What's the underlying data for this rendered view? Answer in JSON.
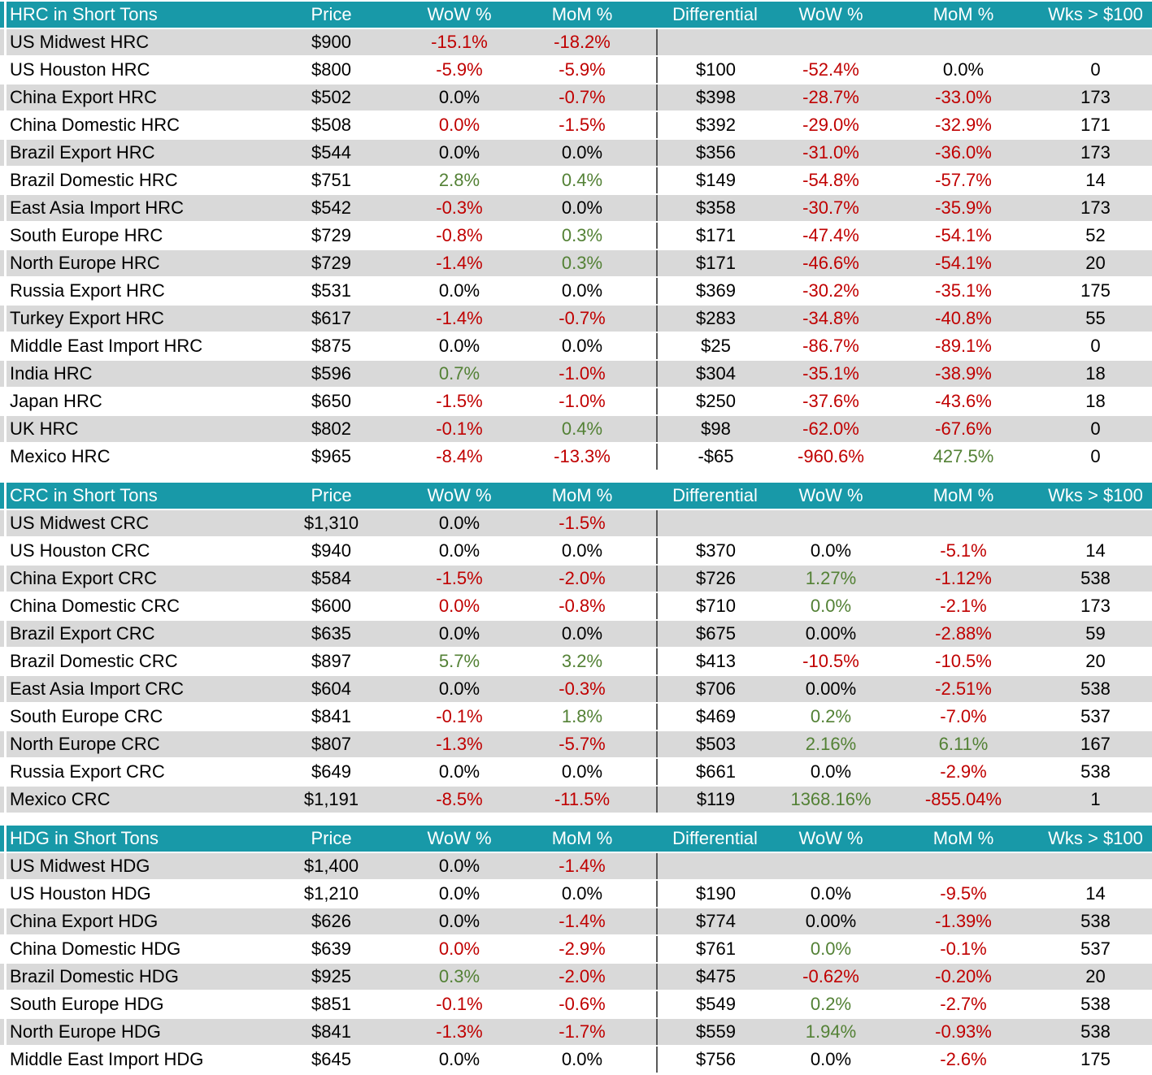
{
  "colors": {
    "header_bg": "#1899A8",
    "header_text": "#FFFFFF",
    "row_alt_bg": "#D9D9D9",
    "row_bg": "#FFFFFF",
    "negative_value": "#C00000",
    "positive_value": "#538135",
    "neutral_value": "#000000",
    "divider_line": "#595959"
  },
  "columns": [
    "Price",
    "WoW %",
    "MoM %",
    "Differential",
    "WoW %",
    "MoM %",
    "Wks > $100"
  ],
  "tables": [
    {
      "title": "HRC in Short Tons",
      "rows": [
        [
          "US Midwest HRC",
          [
            "$900",
            ""
          ],
          [
            "-15.1%",
            "n"
          ],
          [
            "-18.2%",
            "n"
          ],
          [
            "",
            ""
          ],
          [
            "",
            ""
          ],
          [
            "",
            ""
          ],
          [
            "",
            ""
          ]
        ],
        [
          "US Houston HRC",
          [
            "$800",
            ""
          ],
          [
            "-5.9%",
            "n"
          ],
          [
            "-5.9%",
            "n"
          ],
          [
            "$100",
            ""
          ],
          [
            "-52.4%",
            "n"
          ],
          [
            "0.0%",
            ""
          ],
          [
            "0",
            ""
          ]
        ],
        [
          "China Export HRC",
          [
            "$502",
            ""
          ],
          [
            "0.0%",
            ""
          ],
          [
            "-0.7%",
            "n"
          ],
          [
            "$398",
            ""
          ],
          [
            "-28.7%",
            "n"
          ],
          [
            "-33.0%",
            "n"
          ],
          [
            "173",
            ""
          ]
        ],
        [
          "China Domestic HRC",
          [
            "$508",
            ""
          ],
          [
            "0.0%",
            "n"
          ],
          [
            "-1.5%",
            "n"
          ],
          [
            "$392",
            ""
          ],
          [
            "-29.0%",
            "n"
          ],
          [
            "-32.9%",
            "n"
          ],
          [
            "171",
            ""
          ]
        ],
        [
          "Brazil Export HRC",
          [
            "$544",
            ""
          ],
          [
            "0.0%",
            ""
          ],
          [
            "0.0%",
            ""
          ],
          [
            "$356",
            ""
          ],
          [
            "-31.0%",
            "n"
          ],
          [
            "-36.0%",
            "n"
          ],
          [
            "173",
            ""
          ]
        ],
        [
          "Brazil Domestic HRC",
          [
            "$751",
            ""
          ],
          [
            "2.8%",
            "p"
          ],
          [
            "0.4%",
            "p"
          ],
          [
            "$149",
            ""
          ],
          [
            "-54.8%",
            "n"
          ],
          [
            "-57.7%",
            "n"
          ],
          [
            "14",
            ""
          ]
        ],
        [
          "East Asia Import HRC",
          [
            "$542",
            ""
          ],
          [
            "-0.3%",
            "n"
          ],
          [
            "0.0%",
            ""
          ],
          [
            "$358",
            ""
          ],
          [
            "-30.7%",
            "n"
          ],
          [
            "-35.9%",
            "n"
          ],
          [
            "173",
            ""
          ]
        ],
        [
          "South Europe HRC",
          [
            "$729",
            ""
          ],
          [
            "-0.8%",
            "n"
          ],
          [
            "0.3%",
            "p"
          ],
          [
            "$171",
            ""
          ],
          [
            "-47.4%",
            "n"
          ],
          [
            "-54.1%",
            "n"
          ],
          [
            "52",
            ""
          ]
        ],
        [
          "North Europe HRC",
          [
            "$729",
            ""
          ],
          [
            "-1.4%",
            "n"
          ],
          [
            "0.3%",
            "p"
          ],
          [
            "$171",
            ""
          ],
          [
            "-46.6%",
            "n"
          ],
          [
            "-54.1%",
            "n"
          ],
          [
            "20",
            ""
          ]
        ],
        [
          "Russia Export HRC",
          [
            "$531",
            ""
          ],
          [
            "0.0%",
            ""
          ],
          [
            "0.0%",
            ""
          ],
          [
            "$369",
            ""
          ],
          [
            "-30.2%",
            "n"
          ],
          [
            "-35.1%",
            "n"
          ],
          [
            "175",
            ""
          ]
        ],
        [
          "Turkey Export HRC",
          [
            "$617",
            ""
          ],
          [
            "-1.4%",
            "n"
          ],
          [
            "-0.7%",
            "n"
          ],
          [
            "$283",
            ""
          ],
          [
            "-34.8%",
            "n"
          ],
          [
            "-40.8%",
            "n"
          ],
          [
            "55",
            ""
          ]
        ],
        [
          "Middle East Import HRC",
          [
            "$875",
            ""
          ],
          [
            "0.0%",
            ""
          ],
          [
            "0.0%",
            ""
          ],
          [
            "$25",
            ""
          ],
          [
            "-86.7%",
            "n"
          ],
          [
            "-89.1%",
            "n"
          ],
          [
            "0",
            ""
          ]
        ],
        [
          "India HRC",
          [
            "$596",
            ""
          ],
          [
            "0.7%",
            "p"
          ],
          [
            "-1.0%",
            "n"
          ],
          [
            "$304",
            ""
          ],
          [
            "-35.1%",
            "n"
          ],
          [
            "-38.9%",
            "n"
          ],
          [
            "18",
            ""
          ]
        ],
        [
          "Japan HRC",
          [
            "$650",
            ""
          ],
          [
            "-1.5%",
            "n"
          ],
          [
            "-1.0%",
            "n"
          ],
          [
            "$250",
            ""
          ],
          [
            "-37.6%",
            "n"
          ],
          [
            "-43.6%",
            "n"
          ],
          [
            "18",
            ""
          ]
        ],
        [
          "UK HRC",
          [
            "$802",
            ""
          ],
          [
            "-0.1%",
            "n"
          ],
          [
            "0.4%",
            "p"
          ],
          [
            "$98",
            ""
          ],
          [
            "-62.0%",
            "n"
          ],
          [
            "-67.6%",
            "n"
          ],
          [
            "0",
            ""
          ]
        ],
        [
          "Mexico HRC",
          [
            "$965",
            ""
          ],
          [
            "-8.4%",
            "n"
          ],
          [
            "-13.3%",
            "n"
          ],
          [
            "-$65",
            ""
          ],
          [
            "-960.6%",
            "n"
          ],
          [
            "427.5%",
            "p"
          ],
          [
            "0",
            ""
          ]
        ]
      ]
    },
    {
      "title": "CRC in Short Tons",
      "rows": [
        [
          "US Midwest CRC",
          [
            "$1,310",
            ""
          ],
          [
            "0.0%",
            ""
          ],
          [
            "-1.5%",
            "n"
          ],
          [
            "",
            ""
          ],
          [
            "",
            ""
          ],
          [
            "",
            ""
          ],
          [
            "",
            ""
          ]
        ],
        [
          "US Houston CRC",
          [
            "$940",
            ""
          ],
          [
            "0.0%",
            ""
          ],
          [
            "0.0%",
            ""
          ],
          [
            "$370",
            ""
          ],
          [
            "0.0%",
            ""
          ],
          [
            "-5.1%",
            "n"
          ],
          [
            "14",
            ""
          ]
        ],
        [
          "China Export CRC",
          [
            "$584",
            ""
          ],
          [
            "-1.5%",
            "n"
          ],
          [
            "-2.0%",
            "n"
          ],
          [
            "$726",
            ""
          ],
          [
            "1.27%",
            "p"
          ],
          [
            "-1.12%",
            "n"
          ],
          [
            "538",
            ""
          ]
        ],
        [
          "China Domestic CRC",
          [
            "$600",
            ""
          ],
          [
            "0.0%",
            "n"
          ],
          [
            "-0.8%",
            "n"
          ],
          [
            "$710",
            ""
          ],
          [
            "0.0%",
            "p"
          ],
          [
            "-2.1%",
            "n"
          ],
          [
            "173",
            ""
          ]
        ],
        [
          "Brazil Export CRC",
          [
            "$635",
            ""
          ],
          [
            "0.0%",
            ""
          ],
          [
            "0.0%",
            ""
          ],
          [
            "$675",
            ""
          ],
          [
            "0.00%",
            ""
          ],
          [
            "-2.88%",
            "n"
          ],
          [
            "59",
            ""
          ]
        ],
        [
          "Brazil Domestic CRC",
          [
            "$897",
            ""
          ],
          [
            "5.7%",
            "p"
          ],
          [
            "3.2%",
            "p"
          ],
          [
            "$413",
            ""
          ],
          [
            "-10.5%",
            "n"
          ],
          [
            "-10.5%",
            "n"
          ],
          [
            "20",
            ""
          ]
        ],
        [
          "East Asia Import CRC",
          [
            "$604",
            ""
          ],
          [
            "0.0%",
            ""
          ],
          [
            "-0.3%",
            "n"
          ],
          [
            "$706",
            ""
          ],
          [
            "0.00%",
            ""
          ],
          [
            "-2.51%",
            "n"
          ],
          [
            "538",
            ""
          ]
        ],
        [
          "South Europe CRC",
          [
            "$841",
            ""
          ],
          [
            "-0.1%",
            "n"
          ],
          [
            "1.8%",
            "p"
          ],
          [
            "$469",
            ""
          ],
          [
            "0.2%",
            "p"
          ],
          [
            "-7.0%",
            "n"
          ],
          [
            "537",
            ""
          ]
        ],
        [
          "North Europe CRC",
          [
            "$807",
            ""
          ],
          [
            "-1.3%",
            "n"
          ],
          [
            "-5.7%",
            "n"
          ],
          [
            "$503",
            ""
          ],
          [
            "2.16%",
            "p"
          ],
          [
            "6.11%",
            "p"
          ],
          [
            "167",
            ""
          ]
        ],
        [
          "Russia Export CRC",
          [
            "$649",
            ""
          ],
          [
            "0.0%",
            ""
          ],
          [
            "0.0%",
            ""
          ],
          [
            "$661",
            ""
          ],
          [
            "0.0%",
            ""
          ],
          [
            "-2.9%",
            "n"
          ],
          [
            "538",
            ""
          ]
        ],
        [
          "Mexico CRC",
          [
            "$1,191",
            ""
          ],
          [
            "-8.5%",
            "n"
          ],
          [
            "-11.5%",
            "n"
          ],
          [
            "$119",
            ""
          ],
          [
            "1368.16%",
            "p"
          ],
          [
            "-855.04%",
            "n"
          ],
          [
            "1",
            ""
          ]
        ]
      ]
    },
    {
      "title": "HDG in Short Tons",
      "rows": [
        [
          "US Midwest HDG",
          [
            "$1,400",
            ""
          ],
          [
            "0.0%",
            ""
          ],
          [
            "-1.4%",
            "n"
          ],
          [
            "",
            ""
          ],
          [
            "",
            ""
          ],
          [
            "",
            ""
          ],
          [
            "",
            ""
          ]
        ],
        [
          "US Houston HDG",
          [
            "$1,210",
            ""
          ],
          [
            "0.0%",
            ""
          ],
          [
            "0.0%",
            ""
          ],
          [
            "$190",
            ""
          ],
          [
            "0.0%",
            ""
          ],
          [
            "-9.5%",
            "n"
          ],
          [
            "14",
            ""
          ]
        ],
        [
          "China Export HDG",
          [
            "$626",
            ""
          ],
          [
            "0.0%",
            ""
          ],
          [
            "-1.4%",
            "n"
          ],
          [
            "$774",
            ""
          ],
          [
            "0.00%",
            ""
          ],
          [
            "-1.39%",
            "n"
          ],
          [
            "538",
            ""
          ]
        ],
        [
          "China Domestic HDG",
          [
            "$639",
            ""
          ],
          [
            "0.0%",
            "n"
          ],
          [
            "-2.9%",
            "n"
          ],
          [
            "$761",
            ""
          ],
          [
            "0.0%",
            "p"
          ],
          [
            "-0.1%",
            "n"
          ],
          [
            "537",
            ""
          ]
        ],
        [
          "Brazil Domestic HDG",
          [
            "$925",
            ""
          ],
          [
            "0.3%",
            "p"
          ],
          [
            "-2.0%",
            "n"
          ],
          [
            "$475",
            ""
          ],
          [
            "-0.62%",
            "n"
          ],
          [
            "-0.20%",
            "n"
          ],
          [
            "20",
            ""
          ]
        ],
        [
          "South Europe HDG",
          [
            "$851",
            ""
          ],
          [
            "-0.1%",
            "n"
          ],
          [
            "-0.6%",
            "n"
          ],
          [
            "$549",
            ""
          ],
          [
            "0.2%",
            "p"
          ],
          [
            "-2.7%",
            "n"
          ],
          [
            "538",
            ""
          ]
        ],
        [
          "North Europe HDG",
          [
            "$841",
            ""
          ],
          [
            "-1.3%",
            "n"
          ],
          [
            "-1.7%",
            "n"
          ],
          [
            "$559",
            ""
          ],
          [
            "1.94%",
            "p"
          ],
          [
            "-0.93%",
            "n"
          ],
          [
            "538",
            ""
          ]
        ],
        [
          "Middle East Import HDG",
          [
            "$645",
            ""
          ],
          [
            "0.0%",
            ""
          ],
          [
            "0.0%",
            ""
          ],
          [
            "$756",
            ""
          ],
          [
            "0.0%",
            ""
          ],
          [
            "-2.6%",
            "n"
          ],
          [
            "175",
            ""
          ]
        ]
      ]
    }
  ]
}
